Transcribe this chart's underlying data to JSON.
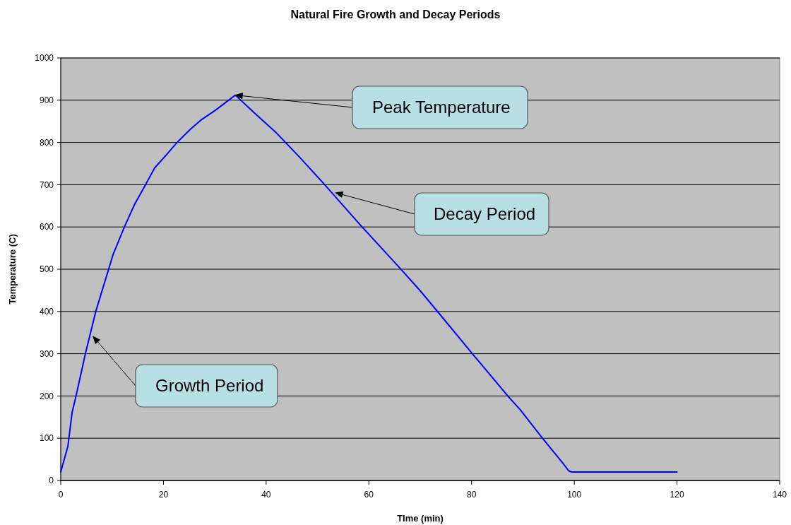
{
  "chart_data": {
    "type": "line",
    "title": "Natural Fire Growth and Decay Periods",
    "xlabel": "TIme (min)",
    "ylabel": "Temperature (C)",
    "x": [
      0,
      1.4,
      2.2,
      3.05,
      4.8,
      6.8,
      10.2,
      12.4,
      14.4,
      16.6,
      18.3,
      20.6,
      22.5,
      25.3,
      27.3,
      30.1,
      34,
      37.7,
      41.8,
      46.6,
      51.4,
      58.3,
      66.1,
      70,
      73.5,
      80.3,
      87.2,
      89.5,
      93.8,
      97.9,
      98.9,
      99.5,
      120
    ],
    "series": [
      {
        "color": "#0000ff",
        "values": [
          20,
          81,
          160,
          204,
          300,
          399,
          535,
          600,
          654,
          702,
          740,
          771,
          798,
          832,
          853,
          876,
          912,
          870,
          825,
          764,
          700,
          605,
          502,
          449,
          398,
          298,
          198,
          167,
          100,
          39,
          23,
          20,
          20
        ]
      }
    ],
    "xlim": [
      0,
      140
    ],
    "xticks": [
      0,
      20,
      40,
      60,
      80,
      100,
      120,
      140
    ],
    "ylim": [
      0,
      1000
    ],
    "yticks": [
      0,
      100,
      200,
      300,
      400,
      500,
      600,
      700,
      800,
      900,
      1000
    ],
    "grid": "y",
    "annotations": [
      {
        "text": "Peak Temperature",
        "x": 34,
        "y": 912
      },
      {
        "text": "Decay Period",
        "x": 53.5,
        "y": 681
      },
      {
        "text": "Growth Period",
        "x": 6.3,
        "y": 341
      }
    ]
  }
}
